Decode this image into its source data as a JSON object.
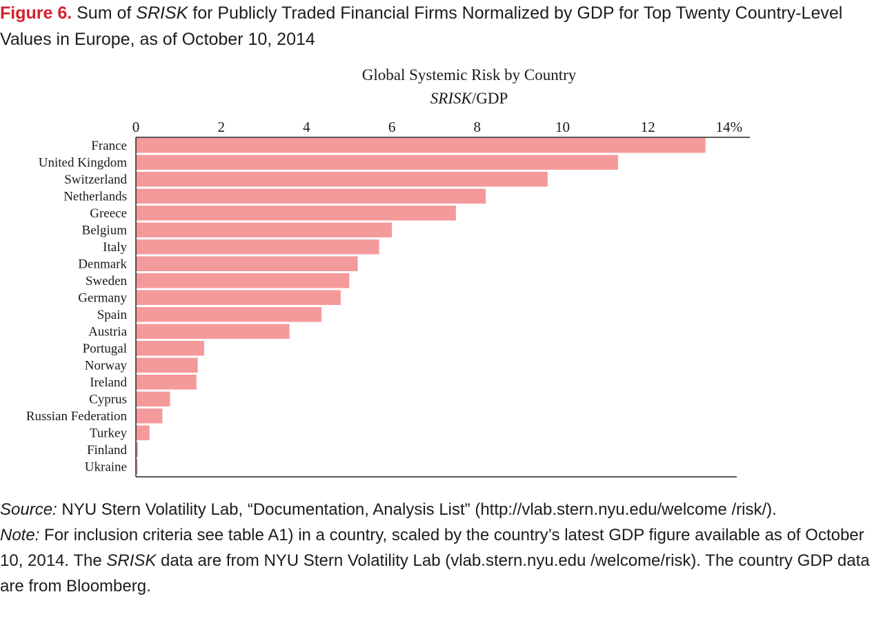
{
  "caption": {
    "label": "Figure 6.",
    "text_a": " Sum of ",
    "text_b_italic": "SRISK",
    "text_c": " for Publicly Traded Financial Firms Normalized by GDP for Top Twenty Country-Level Values in Europe, as of October 10, 2014"
  },
  "chart_data": {
    "type": "bar",
    "orientation": "horizontal",
    "title": "Global Systemic Risk by Country",
    "subtitle_italic": "SRISK",
    "subtitle_rest": "/GDP",
    "categories": [
      "France",
      "United Kingdom",
      "Switzerland",
      "Netherlands",
      "Greece",
      "Belgium",
      "Italy",
      "Denmark",
      "Sweden",
      "Germany",
      "Spain",
      "Austria",
      "Portugal",
      "Norway",
      "Ireland",
      "Cyprus",
      "Russian Federation",
      "Turkey",
      "Finland",
      "Ukraine"
    ],
    "values": [
      13.35,
      11.3,
      9.65,
      8.2,
      7.5,
      6.0,
      5.7,
      5.2,
      5.0,
      4.8,
      4.35,
      3.6,
      1.6,
      1.45,
      1.42,
      0.8,
      0.62,
      0.32,
      0.05,
      0.04
    ],
    "xticks": [
      "0",
      "2",
      "4",
      "6",
      "8",
      "10",
      "12",
      "14%"
    ],
    "xlim": [
      0,
      14
    ],
    "bar_color": "#f49a9b",
    "grid": false
  },
  "notes": {
    "source_label": "Source:",
    "source_text": " NYU Stern Volatility Lab, “Documentation, Analysis List” (http://vlab.stern.nyu.edu/welcome /risk/).",
    "note_label": "Note:",
    "note_text_a": " For inclusion criteria see table A1) in a country, scaled by the country’s latest GDP figure available as of October 10, 2014. The ",
    "note_italic": "SRISK",
    "note_text_b": " data are from NYU Stern Volatility Lab (vlab.stern.nyu.edu /welcome/risk). The country GDP data are from Bloomberg."
  }
}
